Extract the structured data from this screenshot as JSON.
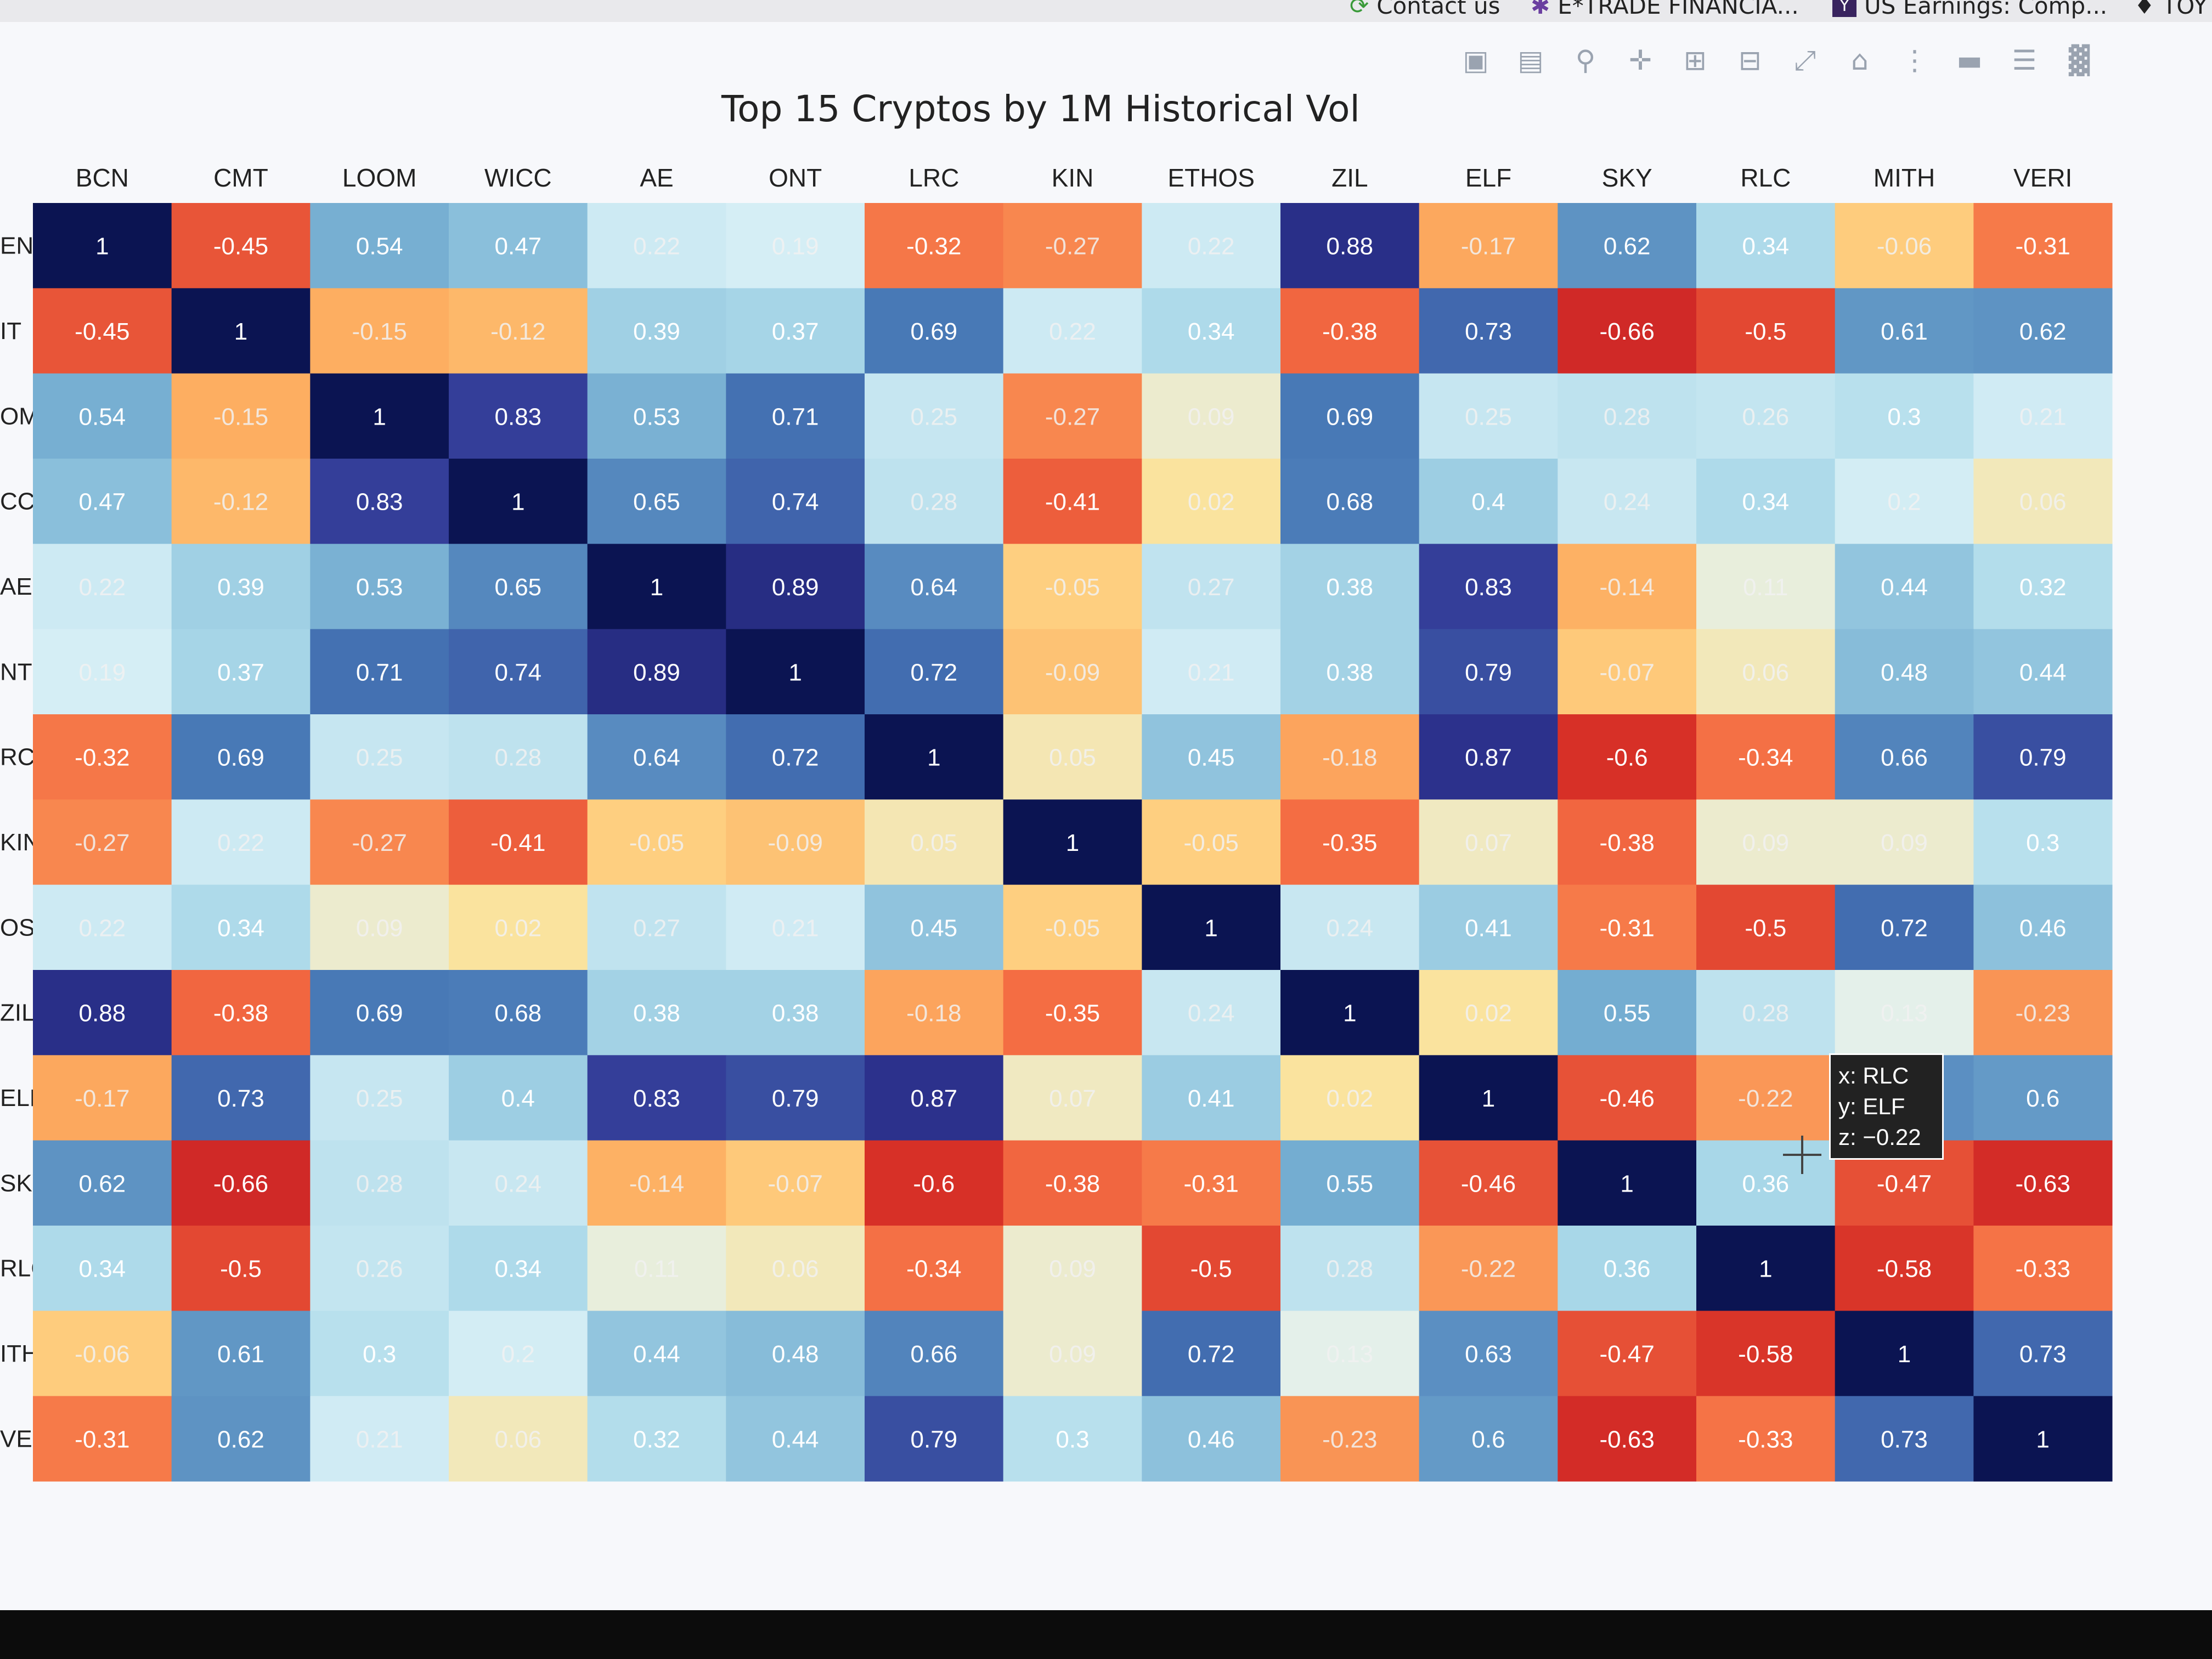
{
  "browser": {
    "bookmarks": [
      {
        "label": "Contact us",
        "icon": "contact-icon"
      },
      {
        "label": "E*TRADE FINANCIA...",
        "icon": "etrade-icon"
      },
      {
        "label": "US Earnings: Comp...",
        "icon": "yahoo-icon"
      },
      {
        "label": "TOY",
        "icon": "toy-icon"
      }
    ]
  },
  "modebar": {
    "icons": [
      "camera-icon",
      "save-icon",
      "zoom-icon",
      "pan-icon",
      "zoom-in-icon",
      "zoom-out-icon",
      "autoscale-icon",
      "reset-axes-icon",
      "spike-lines-icon",
      "hover-closest-icon",
      "hover-compare-icon",
      "plotly-logo-icon"
    ]
  },
  "chart_data": {
    "type": "heatmap",
    "title": "Top 15 Cryptos by 1M Historical Vol",
    "x": [
      "BCN",
      "CMT",
      "LOOM",
      "WICC",
      "AE",
      "ONT",
      "LRC",
      "KIN",
      "ETHOS",
      "ZIL",
      "ELF",
      "SKY",
      "RLC",
      "MITH",
      "VERI"
    ],
    "y_labels_visible": [
      "EN",
      "IT",
      "OM",
      "CC",
      "AE",
      "NT",
      "RC",
      "KIN",
      "OS",
      "ZIL",
      "ELF",
      "SKY",
      "RLC",
      "ITH",
      "VERI"
    ],
    "z": [
      [
        1,
        -0.45,
        0.54,
        0.47,
        0.22,
        0.19,
        -0.32,
        -0.27,
        0.22,
        0.88,
        -0.17,
        0.62,
        0.34,
        -0.06,
        -0.31
      ],
      [
        -0.45,
        1,
        -0.15,
        -0.12,
        0.39,
        0.37,
        0.69,
        0.22,
        0.34,
        -0.38,
        0.73,
        -0.66,
        -0.5,
        0.61,
        0.62
      ],
      [
        0.54,
        -0.15,
        1,
        0.83,
        0.53,
        0.71,
        0.25,
        -0.27,
        0.09,
        0.69,
        0.25,
        0.28,
        0.26,
        0.3,
        0.21
      ],
      [
        0.47,
        -0.12,
        0.83,
        1,
        0.65,
        0.74,
        0.28,
        -0.41,
        0.02,
        0.68,
        0.4,
        0.24,
        0.34,
        0.2,
        0.06
      ],
      [
        0.22,
        0.39,
        0.53,
        0.65,
        1,
        0.89,
        0.64,
        -0.05,
        0.27,
        0.38,
        0.83,
        -0.14,
        0.11,
        0.44,
        0.32
      ],
      [
        0.19,
        0.37,
        0.71,
        0.74,
        0.89,
        1,
        0.72,
        -0.09,
        0.21,
        0.38,
        0.79,
        -0.07,
        0.06,
        0.48,
        0.44
      ],
      [
        -0.32,
        0.69,
        0.25,
        0.28,
        0.64,
        0.72,
        1,
        0.05,
        0.45,
        -0.18,
        0.87,
        -0.6,
        -0.34,
        0.66,
        0.79
      ],
      [
        -0.27,
        0.22,
        -0.27,
        -0.41,
        -0.05,
        -0.09,
        0.05,
        1,
        -0.05,
        -0.35,
        0.07,
        -0.38,
        0.09,
        0.09,
        0.3
      ],
      [
        0.22,
        0.34,
        0.09,
        0.02,
        0.27,
        0.21,
        0.45,
        -0.05,
        1,
        0.24,
        0.41,
        -0.31,
        -0.5,
        0.72,
        0.46
      ],
      [
        0.88,
        -0.38,
        0.69,
        0.68,
        0.38,
        0.38,
        -0.18,
        -0.35,
        0.24,
        1,
        0.02,
        0.55,
        0.28,
        0.13,
        -0.23
      ],
      [
        -0.17,
        0.73,
        0.25,
        0.4,
        0.83,
        0.79,
        0.87,
        0.07,
        0.41,
        0.02,
        1,
        -0.46,
        -0.22,
        0.63,
        0.6
      ],
      [
        0.62,
        -0.66,
        0.28,
        0.24,
        -0.14,
        -0.07,
        -0.6,
        -0.38,
        -0.31,
        0.55,
        -0.46,
        1,
        0.36,
        -0.47,
        -0.63
      ],
      [
        0.34,
        -0.5,
        0.26,
        0.34,
        0.11,
        0.06,
        -0.34,
        0.09,
        -0.5,
        0.28,
        -0.22,
        0.36,
        1,
        -0.58,
        -0.33
      ],
      [
        -0.06,
        0.61,
        0.3,
        0.2,
        0.44,
        0.48,
        0.66,
        0.09,
        0.72,
        0.13,
        0.63,
        -0.47,
        -0.58,
        1,
        0.73
      ],
      [
        -0.31,
        0.62,
        0.21,
        0.06,
        0.32,
        0.44,
        0.79,
        0.3,
        0.46,
        -0.23,
        0.6,
        -0.63,
        -0.33,
        0.73,
        1
      ]
    ],
    "zrange": [
      -1,
      1
    ],
    "colorscale": [
      [
        -1.0,
        "#a50026"
      ],
      [
        -0.6,
        "#d73027"
      ],
      [
        -0.35,
        "#f46d43"
      ],
      [
        -0.15,
        "#fdae61"
      ],
      [
        0.0,
        "#fee090"
      ],
      [
        0.15,
        "#e0f3f8"
      ],
      [
        0.35,
        "#abd9e9"
      ],
      [
        0.55,
        "#74add1"
      ],
      [
        0.7,
        "#4575b4"
      ],
      [
        0.85,
        "#313695"
      ],
      [
        1.0,
        "#0b1452"
      ]
    ]
  },
  "tooltip": {
    "x": "x: RLC",
    "y": "y: ELF",
    "z": "z: −0.22"
  }
}
